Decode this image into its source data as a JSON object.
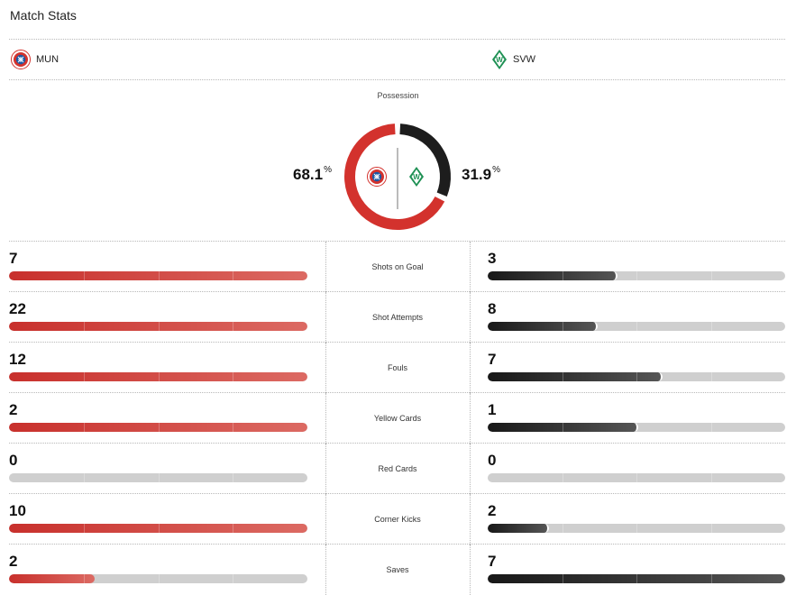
{
  "header": {
    "title": "Match Stats"
  },
  "teams": {
    "home": {
      "abbr": "MUN",
      "color": "#d3322d",
      "logo_icon": "bayern-crest-icon"
    },
    "away": {
      "abbr": "SVW",
      "color": "#1d1d1d",
      "logo_icon": "werder-crest-icon"
    }
  },
  "possession": {
    "label": "Possession",
    "home_pct": "68.1",
    "away_pct": "31.9",
    "unit": "%",
    "home_fraction": 0.681,
    "away_fraction": 0.319
  },
  "stats": [
    {
      "label": "Shots on Goal",
      "home": "7",
      "away": "3",
      "home_fill": 1.0,
      "away_fill": 0.429
    },
    {
      "label": "Shot Attempts",
      "home": "22",
      "away": "8",
      "home_fill": 1.0,
      "away_fill": 0.364
    },
    {
      "label": "Fouls",
      "home": "12",
      "away": "7",
      "home_fill": 1.0,
      "away_fill": 0.583
    },
    {
      "label": "Yellow Cards",
      "home": "2",
      "away": "1",
      "home_fill": 1.0,
      "away_fill": 0.5
    },
    {
      "label": "Red Cards",
      "home": "0",
      "away": "0",
      "home_fill": 0,
      "away_fill": 0
    },
    {
      "label": "Corner Kicks",
      "home": "10",
      "away": "2",
      "home_fill": 1.0,
      "away_fill": 0.2
    },
    {
      "label": "Saves",
      "home": "2",
      "away": "7",
      "home_fill": 0.286,
      "away_fill": 1.0
    }
  ]
}
